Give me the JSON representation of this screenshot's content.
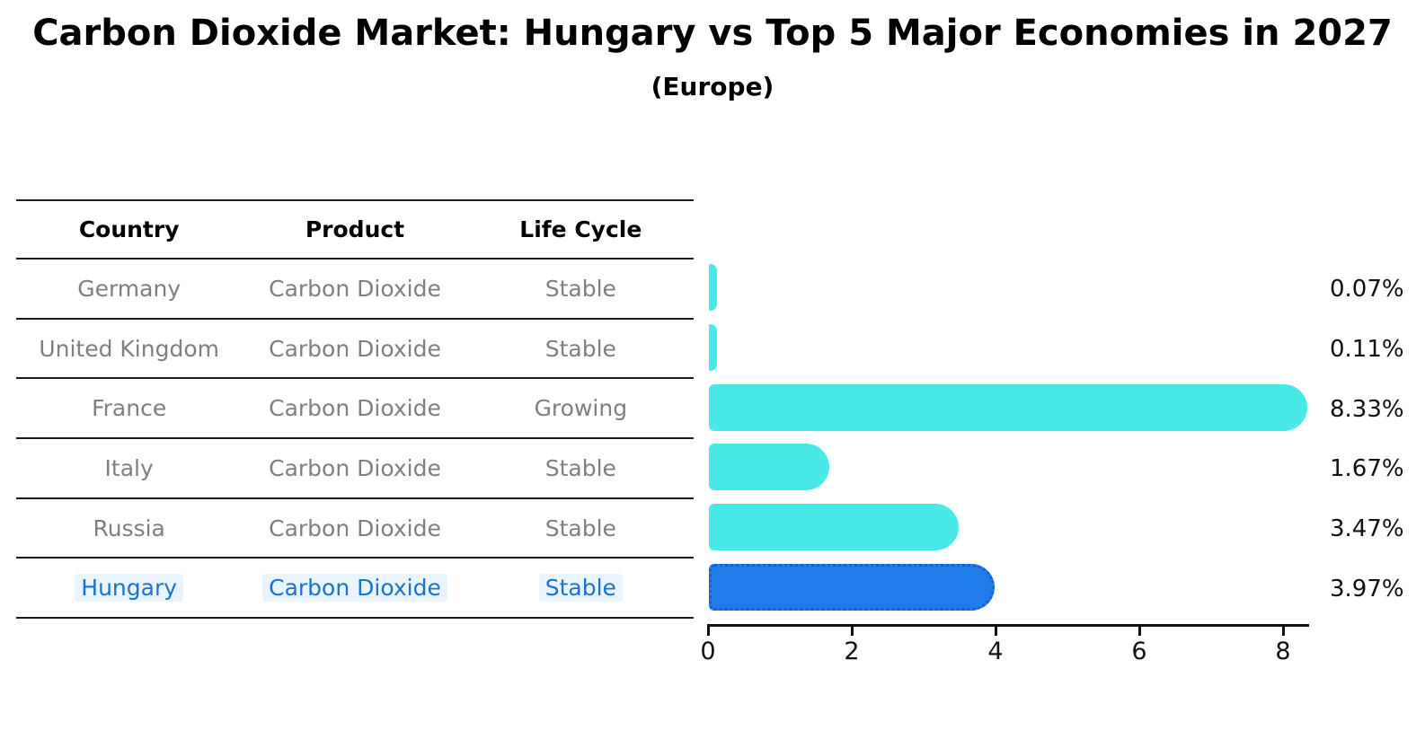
{
  "header": {
    "title": "Carbon Dioxide Market: Hungary vs Top 5 Major Economies in 2027",
    "subtitle": "(Europe)"
  },
  "table": {
    "columns": {
      "country": "Country",
      "product": "Product",
      "life_cycle": "Life Cycle"
    },
    "rows": [
      {
        "country": "Germany",
        "product": "Carbon Dioxide",
        "life_cycle": "Stable"
      },
      {
        "country": "United Kingdom",
        "product": "Carbon Dioxide",
        "life_cycle": "Stable"
      },
      {
        "country": "France",
        "product": "Carbon Dioxide",
        "life_cycle": "Growing"
      },
      {
        "country": "Italy",
        "product": "Carbon Dioxide",
        "life_cycle": "Stable"
      },
      {
        "country": "Russia",
        "product": "Carbon Dioxide",
        "life_cycle": "Stable"
      },
      {
        "country": "Hungary",
        "product": "Carbon Dioxide",
        "life_cycle": "Stable"
      }
    ],
    "highlight_row": "Hungary"
  },
  "chart_data": {
    "type": "bar",
    "orientation": "horizontal",
    "title": "Carbon Dioxide Market: Hungary vs Top 5 Major Economies in 2027",
    "subtitle": "(Europe)",
    "categories": [
      "Germany",
      "United Kingdom",
      "France",
      "Italy",
      "Russia",
      "Hungary"
    ],
    "values": [
      0.07,
      0.11,
      8.33,
      1.67,
      3.47,
      3.97
    ],
    "value_labels": [
      "0.07%",
      "0.11%",
      "8.33%",
      "1.67%",
      "3.47%",
      "3.97%"
    ],
    "xlabel": "",
    "ylabel": "",
    "xlim": [
      0,
      8.35
    ],
    "x_ticks": [
      0,
      2,
      4,
      6,
      8
    ],
    "grid": false,
    "legend": false,
    "bar_color": "#48e9e7",
    "highlight_color": "#1f7ce8",
    "highlight_edge_color": "#155fd0",
    "highlight_index": 5
  },
  "colors": {
    "text_primary": "#000000",
    "text_muted": "#7f7f7f",
    "highlight_text": "#1a73c8",
    "table_line": "#1a1a1a",
    "axis": "#111111"
  }
}
